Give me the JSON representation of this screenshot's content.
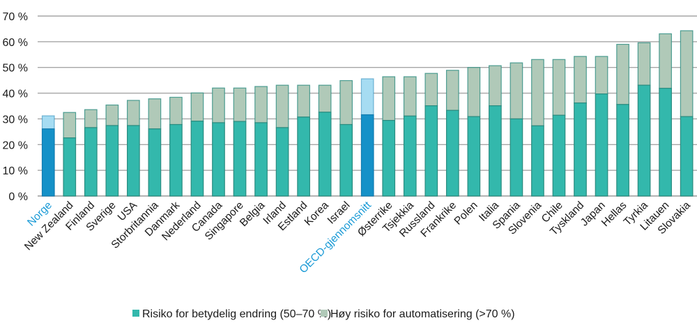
{
  "chart_data": {
    "type": "bar",
    "stacked": true,
    "title": "",
    "xlabel": "",
    "ylabel": "",
    "ylim": [
      0,
      70
    ],
    "yticks": [
      0,
      10,
      20,
      30,
      40,
      50,
      60,
      70
    ],
    "ytick_labels": [
      "0 %",
      "10 %",
      "20 %",
      "30 %",
      "40 %",
      "50 %",
      "60 %",
      "70 %"
    ],
    "grid": true,
    "legend_position": "bottom",
    "categories": [
      "Norge",
      "New Zealand",
      "Finland",
      "Sverige",
      "USA",
      "Storbritannia",
      "Danmark",
      "Nederland",
      "Canada",
      "Singapore",
      "Belgia",
      "Irland",
      "Estland",
      "Korea",
      "Israel",
      "OECD-gjennomsnitt",
      "Østerrike",
      "Tsjekkia",
      "Russland",
      "Frankrike",
      "Polen",
      "Italia",
      "Spania",
      "Slovenia",
      "Chile",
      "Tyskland",
      "Japan",
      "Hellas",
      "Tyrkia",
      "Litauen",
      "Slovakia"
    ],
    "highlighted_categories": [
      "Norge",
      "OECD-gjennomsnitt"
    ],
    "series": [
      {
        "name": "Risiko for betydelig endring (50–70 %)",
        "color": "#33b8ac",
        "highlight_color": "#1591c8",
        "values": [
          26.1,
          22.6,
          26.6,
          27.4,
          27.4,
          26.1,
          27.8,
          29.1,
          28.5,
          29.0,
          28.5,
          26.6,
          30.7,
          32.6,
          27.8,
          31.6,
          29.4,
          31.1,
          35.1,
          33.3,
          30.9,
          35.1,
          30.0,
          27.3,
          31.4,
          36.2,
          39.7,
          35.6,
          43.1,
          41.9,
          30.9
        ]
      },
      {
        "name": "Høy risiko for automatisering (>70 %)",
        "color": "#b0c9b8",
        "highlight_color": "#a6dcf2",
        "values": [
          5.1,
          9.9,
          7.0,
          8.0,
          9.8,
          11.7,
          10.6,
          11.0,
          13.5,
          13.0,
          14.1,
          16.5,
          12.4,
          10.5,
          17.1,
          14.0,
          17.0,
          15.3,
          12.6,
          15.6,
          19.1,
          15.6,
          21.8,
          25.8,
          21.7,
          18.1,
          14.6,
          23.4,
          16.5,
          21.2,
          33.4
        ]
      }
    ],
    "totals": [
      31.2,
      32.5,
      33.6,
      35.4,
      37.2,
      37.8,
      38.4,
      40.1,
      42.0,
      42.0,
      42.6,
      43.1,
      43.1,
      43.1,
      44.9,
      45.6,
      46.4,
      46.4,
      47.7,
      48.9,
      50.0,
      50.7,
      51.8,
      53.1,
      53.1,
      54.3,
      54.3,
      59.0,
      59.6,
      63.1,
      64.3
    ]
  },
  "colors": {
    "bar_border": "#2a8c80",
    "highlight_border": "#127bb0",
    "highlight_label": "#1a9ad6"
  },
  "legend": {
    "items": [
      {
        "label": "Risiko for betydelig endring (50–70 %)",
        "color": "#33b8ac"
      },
      {
        "label": "Høy risiko for automatisering (>70 %)",
        "color": "#b0c9b8"
      }
    ]
  }
}
